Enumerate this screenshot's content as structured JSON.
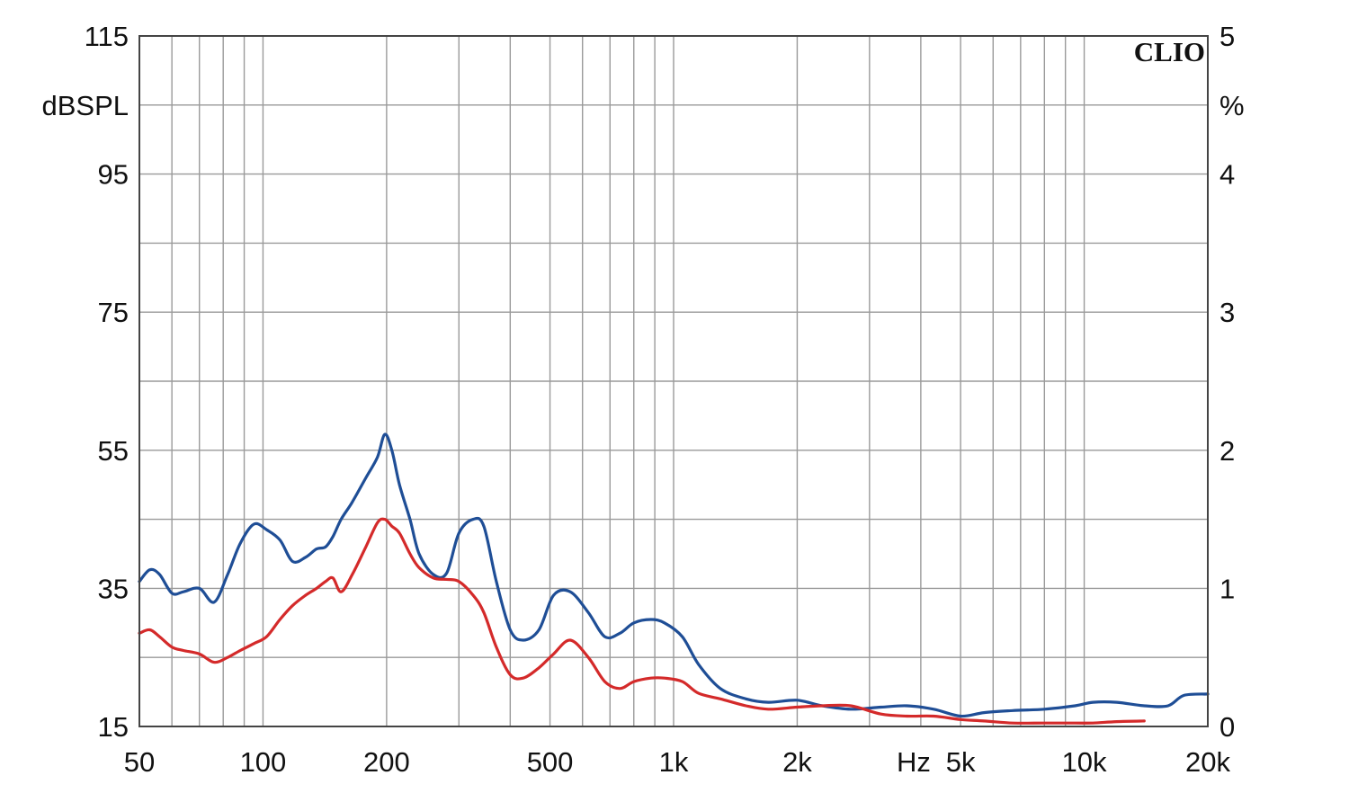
{
  "chart_data": {
    "type": "line",
    "title": "",
    "brand": "CLIO",
    "xlabel": "Hz",
    "ylabel_left": "dBSPL",
    "ylabel_right": "%",
    "x_scale": "log",
    "xlim": [
      50,
      20000
    ],
    "ylim_left": [
      15,
      115
    ],
    "ylim_right": [
      0,
      5
    ],
    "grid": true,
    "x_ticks": [
      {
        "value": 50,
        "label": "50"
      },
      {
        "value": 100,
        "label": "100"
      },
      {
        "value": 200,
        "label": "200"
      },
      {
        "value": 500,
        "label": "500"
      },
      {
        "value": 1000,
        "label": "1k"
      },
      {
        "value": 2000,
        "label": "2k"
      },
      {
        "value": 5000,
        "label": "5k"
      },
      {
        "value": 10000,
        "label": "10k"
      },
      {
        "value": 20000,
        "label": "20k"
      }
    ],
    "y_ticks_left": [
      {
        "value": 115,
        "label": "115"
      },
      {
        "value": 95,
        "label": "95"
      },
      {
        "value": 75,
        "label": "75"
      },
      {
        "value": 55,
        "label": "55"
      },
      {
        "value": 35,
        "label": "35"
      },
      {
        "value": 15,
        "label": "15"
      }
    ],
    "y_ticks_right": [
      {
        "value": 5,
        "label": "5"
      },
      {
        "value": 4,
        "label": "4"
      },
      {
        "value": 3,
        "label": "3"
      },
      {
        "value": 2,
        "label": "2"
      },
      {
        "value": 1,
        "label": "1"
      },
      {
        "value": 0,
        "label": "0"
      }
    ],
    "series": [
      {
        "color": "#1f4e96",
        "x": [
          50,
          53,
          56,
          60,
          64,
          70,
          76,
          82,
          88,
          95,
          102,
          110,
          118,
          127,
          135,
          142,
          148,
          155,
          165,
          178,
          190,
          198,
          206,
          215,
          228,
          240,
          260,
          280,
          300,
          325,
          345,
          370,
          400,
          430,
          470,
          510,
          560,
          620,
          680,
          740,
          800,
          880,
          950,
          1050,
          1150,
          1300,
          1500,
          1700,
          2000,
          2300,
          2700,
          3200,
          3700,
          4300,
          5000,
          5700,
          6700,
          8000,
          9500,
          10500,
          12000,
          14000,
          16000,
          17500,
          20000
        ],
        "y": [
          36.0,
          37.7,
          37.0,
          34.3,
          34.5,
          35.0,
          33.0,
          37.0,
          41.5,
          44.3,
          43.5,
          42.0,
          38.9,
          39.5,
          40.7,
          41.0,
          42.5,
          45.0,
          47.5,
          51.0,
          54.0,
          57.3,
          55.0,
          50.0,
          45.0,
          40.0,
          37.0,
          37.2,
          43.0,
          45.0,
          44.0,
          36.0,
          29.0,
          27.5,
          29.0,
          34.0,
          34.5,
          31.5,
          28.0,
          28.5,
          30.0,
          30.5,
          30.0,
          28.0,
          24.0,
          20.5,
          19.0,
          18.5,
          18.8,
          18.0,
          17.5,
          17.8,
          18.0,
          17.5,
          16.5,
          17.0,
          17.3,
          17.5,
          18.0,
          18.5,
          18.5,
          18.0,
          18.0,
          19.5,
          19.7
        ]
      },
      {
        "color": "#d42a2a",
        "x": [
          50,
          53,
          56,
          60,
          64,
          70,
          76,
          82,
          88,
          95,
          102,
          110,
          118,
          127,
          135,
          142,
          148,
          155,
          165,
          178,
          190,
          198,
          206,
          215,
          228,
          240,
          260,
          280,
          300,
          325,
          345,
          370,
          400,
          430,
          470,
          510,
          560,
          620,
          680,
          740,
          800,
          880,
          950,
          1050,
          1150,
          1300,
          1500,
          1700,
          2000,
          2300,
          2700,
          3200,
          3700,
          4300,
          5000,
          5700,
          6700,
          8000,
          9500,
          10500,
          12000,
          14000
        ],
        "y": [
          28.5,
          29.0,
          28.0,
          26.5,
          26.0,
          25.5,
          24.3,
          25.0,
          26.0,
          27.0,
          28.0,
          30.5,
          32.5,
          34.0,
          35.0,
          36.0,
          36.5,
          34.5,
          37.0,
          41.0,
          44.5,
          45.0,
          44.0,
          43.0,
          40.0,
          38.0,
          36.5,
          36.3,
          36.0,
          34.0,
          31.5,
          26.5,
          22.5,
          22.0,
          23.5,
          25.5,
          27.5,
          25.0,
          21.5,
          20.5,
          21.5,
          22.0,
          22.0,
          21.5,
          19.8,
          19.0,
          18.0,
          17.5,
          17.8,
          18.0,
          18.0,
          16.8,
          16.5,
          16.5,
          16.0,
          15.8,
          15.5,
          15.5,
          15.5,
          15.5,
          15.7,
          15.8
        ]
      }
    ]
  }
}
